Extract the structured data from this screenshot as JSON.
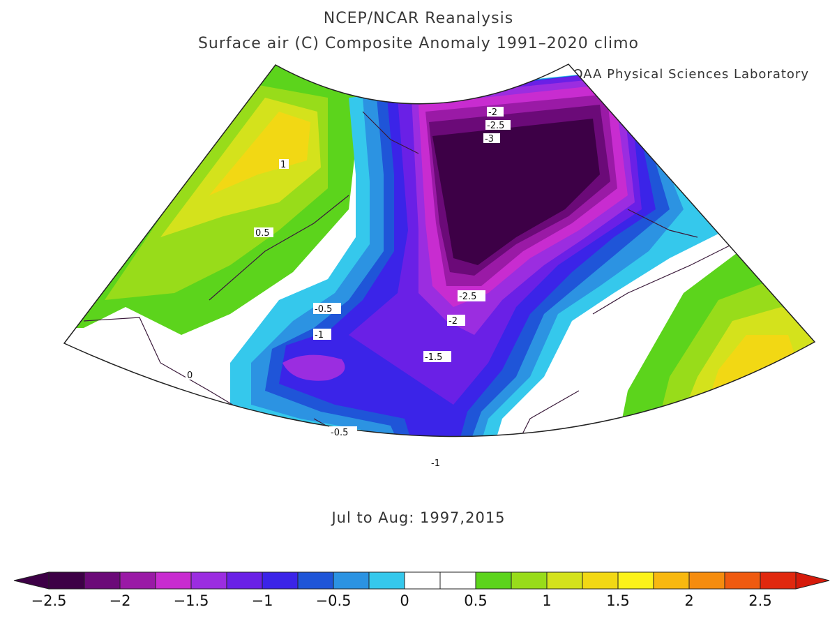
{
  "header": {
    "title": "NCEP/NCAR Reanalysis",
    "subtitle": "Surface air (C) Composite Anomaly 1991–2020 climo",
    "credit": "NOAA Physical Sciences Laboratory"
  },
  "footer": {
    "period": "Jul to Aug: 1997,2015"
  },
  "contour_labels": [
    "-2",
    "-2.5",
    "-3",
    "1",
    "0.5",
    "-0.5",
    "-1",
    "-2.5",
    "-2",
    "-1.5",
    "0",
    "-0.5",
    "-1"
  ],
  "colorbar": {
    "ticks": [
      "−2.5",
      "−2",
      "−1.5",
      "−1",
      "−0.5",
      "0",
      "0.5",
      "1",
      "1.5",
      "2",
      "2.5"
    ],
    "colors": [
      "#3d0046",
      "#6b0a78",
      "#9a1aa6",
      "#c82cd0",
      "#9b2de0",
      "#6a20e6",
      "#3b24e8",
      "#1f55d8",
      "#2c93e2",
      "#35c8ec",
      "#ffffff",
      "#ffffff",
      "#5cd41c",
      "#98dc1a",
      "#d4e21c",
      "#f2d814",
      "#fcf21a",
      "#f8b810",
      "#f58c0e",
      "#ef5a10",
      "#e0280e"
    ],
    "left_end_color": "#3d0046",
    "right_end_color": "#d61a0a"
  }
}
